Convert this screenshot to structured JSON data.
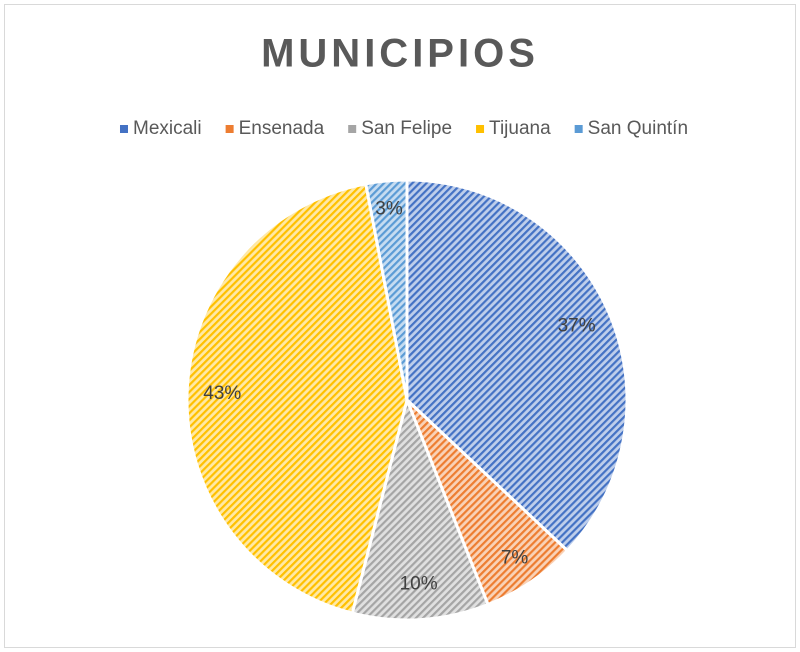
{
  "chart_data": {
    "type": "pie",
    "title": "MUNICIPIOS",
    "categories": [
      "Mexicali",
      "Ensenada",
      "San Felipe",
      "Tijuana",
      "San Quintín"
    ],
    "values": [
      37,
      7,
      10,
      43,
      3
    ],
    "value_labels": [
      "37%",
      "7%",
      "10%",
      "43%",
      "3%"
    ],
    "colors": [
      "#4472c4",
      "#ed7d31",
      "#a5a5a5",
      "#ffc000",
      "#5b9bd5"
    ],
    "legend": "top"
  }
}
